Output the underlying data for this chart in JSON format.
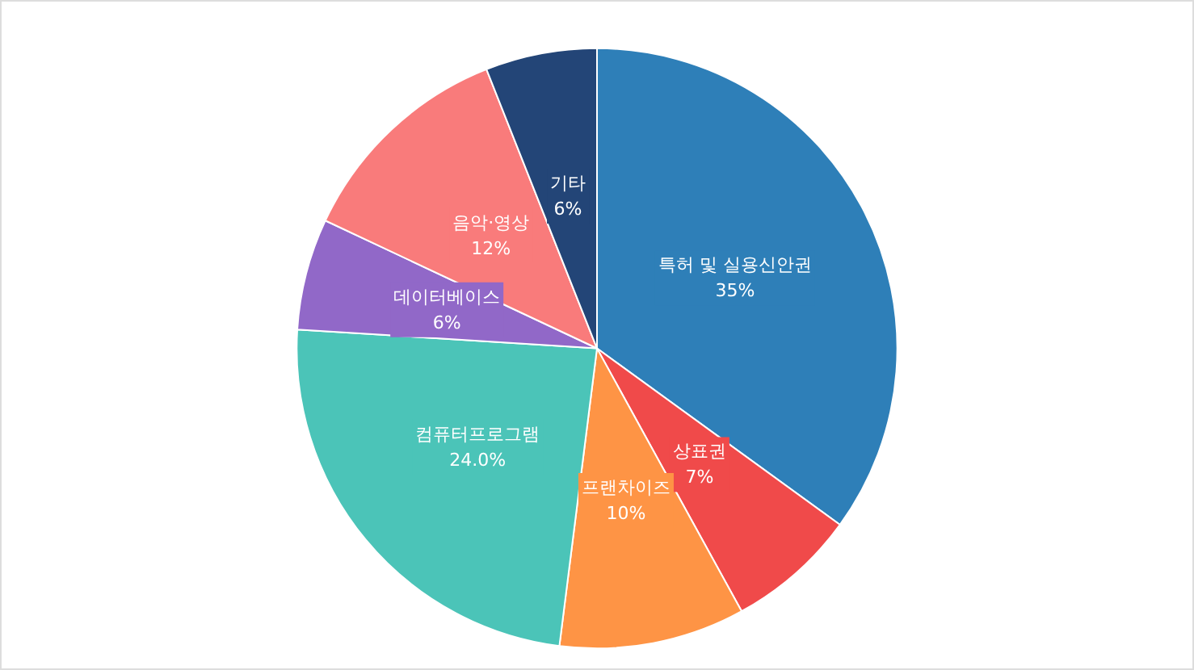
{
  "chart_data": {
    "type": "pie",
    "categories": [
      "특허 및 실용신안권",
      "상표권",
      "프랜차이즈",
      "컴퓨터프로그램",
      "데이터베이스",
      "음악·영상",
      "기타"
    ],
    "values": [
      35,
      7,
      10,
      24.0,
      6,
      12,
      6
    ],
    "value_labels": [
      "35%",
      "7%",
      "10%",
      "24.0%",
      "6%",
      "12%",
      "6%"
    ],
    "colors": [
      "#2e7fb8",
      "#f04a4a",
      "#fe9445",
      "#4bc4b8",
      "#9168c8",
      "#f97b7b",
      "#234577"
    ],
    "legend": false
  }
}
